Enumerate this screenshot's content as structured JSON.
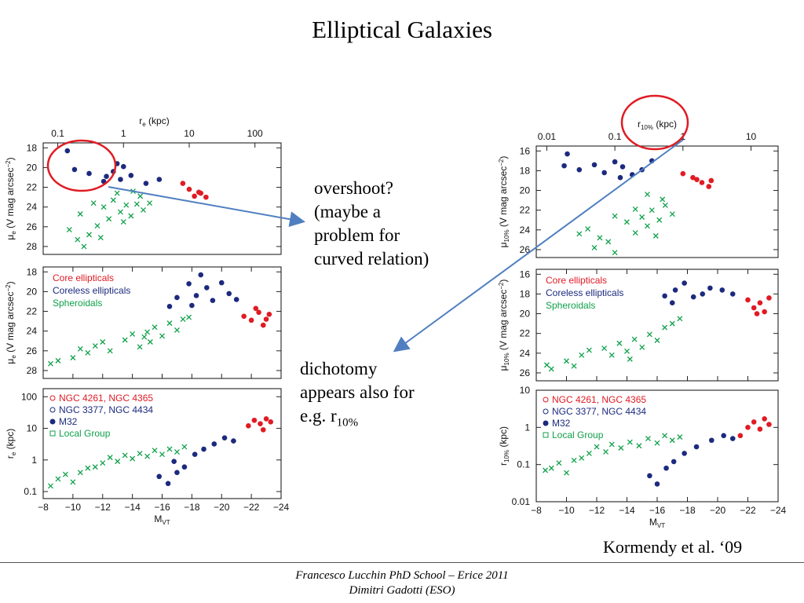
{
  "slide": {
    "title": "Elliptical Galaxies",
    "annotation1": [
      "overshoot?",
      "(maybe a",
      "problem for",
      "curved relation)"
    ],
    "annotation2": [
      "dichotomy",
      "appears also for",
      "e.g. r"
    ],
    "annotation2_sub": "10%",
    "citation": "Kormendy et al. ‘09",
    "footer": [
      "Francesco Lucchin PhD School – Erice 2011",
      "Dimitri Gadotti (ESO)"
    ]
  },
  "colors": {
    "core": "#e01b24",
    "coreless": "#1c2a7e",
    "spheroidal": "#10a04a",
    "arrow": "#4f7fc0",
    "circle": "#e01b24"
  },
  "legend": {
    "types": [
      "Core ellipticals",
      "Coreless ellipticals",
      "Spheroidals"
    ],
    "special": [
      "NGC 4261,  NGC 4365",
      "NGC 3377,  NGC 4434",
      "M32",
      "Local Group"
    ]
  },
  "chart_data": [
    {
      "type": "scatter",
      "panel": "left-top",
      "xlabel": "r_e (kpc)",
      "ylabel": "μ_e (V mag arcsec^-2)",
      "xscale": "log",
      "xlim": [
        0.06,
        250
      ],
      "ylim": [
        28.8,
        17.5
      ],
      "xticks": [
        "0.1",
        "1",
        "10",
        "100"
      ],
      "yticks": [
        "18",
        "20",
        "22",
        "24",
        "26",
        "28"
      ],
      "series": [
        {
          "name": "Core ellipticals",
          "points": [
            [
              8,
              21.6
            ],
            [
              10,
              22.2
            ],
            [
              12,
              22.9
            ],
            [
              15,
              22.6
            ],
            [
              18,
              23.0
            ],
            [
              14,
              22.5
            ]
          ]
        },
        {
          "name": "Coreless ellipticals",
          "points": [
            [
              0.14,
              18.3
            ],
            [
              0.18,
              20.2
            ],
            [
              0.3,
              20.6
            ],
            [
              0.55,
              20.9
            ],
            [
              0.7,
              20.4
            ],
            [
              0.8,
              19.6
            ],
            [
              1.0,
              19.9
            ],
            [
              1.3,
              20.8
            ],
            [
              2.2,
              21.6
            ],
            [
              3.5,
              21.2
            ],
            [
              0.5,
              21.4
            ],
            [
              0.9,
              21.2
            ]
          ]
        },
        {
          "name": "Spheroidals",
          "points": [
            [
              0.35,
              23.6
            ],
            [
              0.5,
              24.0
            ],
            [
              0.7,
              23.3
            ],
            [
              0.9,
              24.5
            ],
            [
              1.1,
              23.8
            ],
            [
              1.3,
              24.9
            ],
            [
              1.6,
              23.7
            ],
            [
              2.0,
              24.3
            ],
            [
              2.5,
              23.6
            ],
            [
              0.6,
              25.2
            ],
            [
              1.0,
              25.5
            ],
            [
              1.4,
              22.4
            ],
            [
              1.8,
              22.9
            ],
            [
              0.8,
              22.6
            ],
            [
              0.22,
              24.7
            ],
            [
              0.3,
              26.8
            ],
            [
              0.4,
              25.9
            ],
            [
              0.2,
              27.3
            ],
            [
              0.15,
              26.3
            ],
            [
              0.45,
              27.1
            ],
            [
              0.25,
              28.0
            ]
          ]
        }
      ]
    },
    {
      "type": "scatter",
      "panel": "left-middle",
      "xlabel": "",
      "ylabel": "μ_e (V mag arcsec^-2)",
      "xlim": [
        -8,
        -24
      ],
      "ylim": [
        28.8,
        17.5
      ],
      "yticks": [
        "18",
        "20",
        "22",
        "24",
        "26",
        "28"
      ],
      "series": [
        {
          "name": "Core ellipticals",
          "points": [
            [
              -21.5,
              22.5
            ],
            [
              -22,
              22.9
            ],
            [
              -22.5,
              22.1
            ],
            [
              -23,
              22.8
            ],
            [
              -22.8,
              23.4
            ],
            [
              -22.3,
              21.7
            ],
            [
              -23.2,
              22.3
            ]
          ]
        },
        {
          "name": "Coreless ellipticals",
          "points": [
            [
              -16.5,
              21.5
            ],
            [
              -17,
              20.6
            ],
            [
              -17.8,
              19.2
            ],
            [
              -18.3,
              20.4
            ],
            [
              -18.6,
              18.3
            ],
            [
              -19,
              19.6
            ],
            [
              -19.4,
              20.9
            ],
            [
              -20,
              19.1
            ],
            [
              -20.5,
              20.2
            ],
            [
              -21,
              20.8
            ],
            [
              -18,
              21.4
            ]
          ]
        },
        {
          "name": "Spheroidals",
          "points": [
            [
              -13.5,
              24.9
            ],
            [
              -14,
              24.3
            ],
            [
              -14.5,
              25.6
            ],
            [
              -15,
              24.1
            ],
            [
              -15.5,
              23.6
            ],
            [
              -16,
              24.5
            ],
            [
              -16.5,
              23.2
            ],
            [
              -17,
              23.9
            ],
            [
              -17.4,
              22.8
            ],
            [
              -17.8,
              22.6
            ],
            [
              -15.2,
              25.1
            ],
            [
              -14.8,
              24.6
            ],
            [
              -12.5,
              26.0
            ],
            [
              -12,
              25.1
            ],
            [
              -11,
              26.2
            ],
            [
              -10,
              26.7
            ],
            [
              -9,
              27.0
            ],
            [
              -8.5,
              27.3
            ],
            [
              -10.5,
              25.8
            ],
            [
              -11.5,
              25.5
            ]
          ]
        }
      ]
    },
    {
      "type": "scatter",
      "panel": "left-bottom",
      "xlabel": "M_VT",
      "ylabel": "r_e (kpc)",
      "yscale": "log",
      "xlim": [
        -8,
        -24
      ],
      "ylim": [
        0.06,
        180
      ],
      "xticks": [
        "−8",
        "−10",
        "−12",
        "−14",
        "−16",
        "−18",
        "−20",
        "−22",
        "−24"
      ],
      "yticks": [
        "0.1",
        "1",
        "10",
        "100"
      ],
      "series": [
        {
          "name": "Core ellipticals",
          "points": [
            [
              -21.8,
              12
            ],
            [
              -22.2,
              18
            ],
            [
              -22.6,
              14
            ],
            [
              -23,
              20
            ],
            [
              -23.3,
              16
            ],
            [
              -22.8,
              9
            ]
          ]
        },
        {
          "name": "Coreless ellipticals",
          "points": [
            [
              -15.8,
              0.3
            ],
            [
              -16.4,
              0.18
            ],
            [
              -17,
              0.4
            ],
            [
              -17.5,
              0.6
            ],
            [
              -18.2,
              1.5
            ],
            [
              -18.8,
              2.2
            ],
            [
              -19.5,
              3.2
            ],
            [
              -20.2,
              5
            ],
            [
              -20.8,
              4
            ],
            [
              -16.8,
              0.9
            ]
          ]
        },
        {
          "name": "Spheroidals",
          "points": [
            [
              -12,
              0.8
            ],
            [
              -12.5,
              1.2
            ],
            [
              -13,
              0.9
            ],
            [
              -13.5,
              1.4
            ],
            [
              -14,
              1.1
            ],
            [
              -14.5,
              1.6
            ],
            [
              -15,
              1.3
            ],
            [
              -15.5,
              2.0
            ],
            [
              -16,
              1.5
            ],
            [
              -16.5,
              2.2
            ],
            [
              -17,
              1.8
            ],
            [
              -17.5,
              2.6
            ],
            [
              -9,
              0.25
            ],
            [
              -9.5,
              0.35
            ],
            [
              -10,
              0.2
            ],
            [
              -8.5,
              0.15
            ],
            [
              -10.5,
              0.4
            ],
            [
              -11,
              0.55
            ],
            [
              -11.5,
              0.6
            ]
          ]
        }
      ]
    },
    {
      "type": "scatter",
      "panel": "right-top",
      "xlabel": "r_10% (kpc)",
      "ylabel": "μ_10% (V mag arcsec^-2)",
      "xscale": "log",
      "xlim": [
        0.007,
        25
      ],
      "ylim": [
        26.8,
        15.5
      ],
      "xticks": [
        "0.01",
        "0.1",
        "1",
        "10"
      ],
      "yticks": [
        "16",
        "18",
        "20",
        "22",
        "24",
        "26"
      ],
      "series": [
        {
          "name": "Core ellipticals",
          "points": [
            [
              1.0,
              18.3
            ],
            [
              1.4,
              18.7
            ],
            [
              1.9,
              19.2
            ],
            [
              2.4,
              19.6
            ],
            [
              2.6,
              19.0
            ],
            [
              1.6,
              18.9
            ]
          ]
        },
        {
          "name": "Coreless ellipticals",
          "points": [
            [
              0.02,
              16.3
            ],
            [
              0.018,
              17.5
            ],
            [
              0.03,
              17.9
            ],
            [
              0.05,
              17.4
            ],
            [
              0.07,
              18.2
            ],
            [
              0.1,
              17.1
            ],
            [
              0.13,
              17.6
            ],
            [
              0.18,
              18.4
            ],
            [
              0.25,
              17.9
            ],
            [
              0.35,
              17.0
            ],
            [
              0.12,
              18.7
            ]
          ]
        },
        {
          "name": "Spheroidals",
          "points": [
            [
              0.1,
              22.6
            ],
            [
              0.15,
              23.2
            ],
            [
              0.2,
              21.9
            ],
            [
              0.25,
              22.7
            ],
            [
              0.3,
              23.6
            ],
            [
              0.35,
              22.0
            ],
            [
              0.45,
              23.0
            ],
            [
              0.55,
              21.5
            ],
            [
              0.7,
              22.4
            ],
            [
              0.2,
              24.3
            ],
            [
              0.4,
              24.6
            ],
            [
              0.3,
              20.4
            ],
            [
              0.5,
              20.9
            ],
            [
              0.06,
              24.8
            ],
            [
              0.04,
              23.9
            ],
            [
              0.05,
              25.8
            ],
            [
              0.08,
              25.2
            ],
            [
              0.03,
              24.4
            ],
            [
              0.1,
              26.3
            ]
          ]
        }
      ]
    },
    {
      "type": "scatter",
      "panel": "right-middle",
      "xlabel": "",
      "ylabel": "μ_10% (V mag arcsec^-2)",
      "xlim": [
        -8,
        -24
      ],
      "ylim": [
        26.8,
        15.5
      ],
      "yticks": [
        "16",
        "18",
        "20",
        "22",
        "24",
        "26"
      ],
      "series": [
        {
          "name": "Core ellipticals",
          "points": [
            [
              -22,
              18.6
            ],
            [
              -22.4,
              19.4
            ],
            [
              -22.8,
              18.9
            ],
            [
              -23.1,
              19.8
            ],
            [
              -23.4,
              18.4
            ],
            [
              -22.6,
              20.0
            ]
          ]
        },
        {
          "name": "Coreless ellipticals",
          "points": [
            [
              -16.5,
              18.2
            ],
            [
              -17,
              18.9
            ],
            [
              -17.8,
              16.9
            ],
            [
              -18.4,
              18.3
            ],
            [
              -19,
              18.0
            ],
            [
              -19.5,
              17.4
            ],
            [
              -20.3,
              17.6
            ],
            [
              -21,
              18.0
            ],
            [
              -17.2,
              17.6
            ]
          ]
        },
        {
          "name": "Spheroidals",
          "points": [
            [
              -12.5,
              23.5
            ],
            [
              -13,
              24.2
            ],
            [
              -13.5,
              23.0
            ],
            [
              -14,
              23.8
            ],
            [
              -14.5,
              22.6
            ],
            [
              -15,
              23.4
            ],
            [
              -15.5,
              22.1
            ],
            [
              -16,
              22.7
            ],
            [
              -16.5,
              21.4
            ],
            [
              -17,
              21.0
            ],
            [
              -17.5,
              20.5
            ],
            [
              -14.2,
              24.6
            ],
            [
              -10,
              24.8
            ],
            [
              -11,
              24.2
            ],
            [
              -9,
              25.6
            ],
            [
              -8.7,
              25.2
            ],
            [
              -10.5,
              25.3
            ],
            [
              -11.5,
              23.7
            ]
          ]
        }
      ]
    },
    {
      "type": "scatter",
      "panel": "right-bottom",
      "xlabel": "M_VT",
      "ylabel": "r_10% (kpc)",
      "yscale": "log",
      "xlim": [
        -8,
        -24
      ],
      "ylim": [
        0.01,
        10
      ],
      "xticks": [
        "−8",
        "−10",
        "−12",
        "−14",
        "−16",
        "−18",
        "−20",
        "−22",
        "−24"
      ],
      "yticks": [
        "0.01",
        "0.1",
        "1",
        "10"
      ],
      "series": [
        {
          "name": "Core ellipticals",
          "points": [
            [
              -22,
              1.0
            ],
            [
              -22.4,
              1.4
            ],
            [
              -22.8,
              0.9
            ],
            [
              -23.1,
              1.7
            ],
            [
              -23.4,
              1.2
            ],
            [
              -21.5,
              0.6
            ]
          ]
        },
        {
          "name": "Coreless ellipticals",
          "points": [
            [
              -15.5,
              0.05
            ],
            [
              -16,
              0.03
            ],
            [
              -16.6,
              0.08
            ],
            [
              -17.1,
              0.12
            ],
            [
              -17.8,
              0.2
            ],
            [
              -18.6,
              0.3
            ],
            [
              -19.6,
              0.45
            ],
            [
              -20.4,
              0.6
            ],
            [
              -21,
              0.5
            ]
          ]
        },
        {
          "name": "Spheroidals",
          "points": [
            [
              -11.5,
              0.2
            ],
            [
              -12,
              0.3
            ],
            [
              -12.6,
              0.22
            ],
            [
              -13,
              0.35
            ],
            [
              -13.6,
              0.28
            ],
            [
              -14.2,
              0.4
            ],
            [
              -14.8,
              0.32
            ],
            [
              -15.4,
              0.5
            ],
            [
              -16,
              0.38
            ],
            [
              -16.5,
              0.6
            ],
            [
              -17,
              0.45
            ],
            [
              -17.5,
              0.55
            ],
            [
              -9,
              0.08
            ],
            [
              -9.5,
              0.11
            ],
            [
              -10,
              0.06
            ],
            [
              -8.6,
              0.07
            ],
            [
              -10.5,
              0.13
            ],
            [
              -11,
              0.15
            ]
          ]
        }
      ]
    }
  ]
}
